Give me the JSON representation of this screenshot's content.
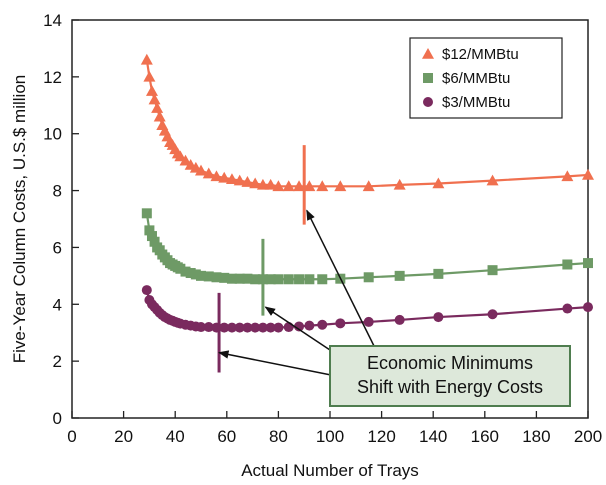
{
  "chart_data": {
    "type": "line",
    "xlabel": "Actual Number of Trays",
    "ylabel": "Five-Year Column Costs, U.S.$ million",
    "xlim": [
      0,
      200
    ],
    "ylim": [
      0,
      14
    ],
    "xticks": [
      0,
      20,
      40,
      60,
      80,
      100,
      120,
      140,
      160,
      180,
      200
    ],
    "yticks": [
      0,
      2,
      4,
      6,
      8,
      10,
      12,
      14
    ],
    "grid": false,
    "legend_position": "top-right",
    "series": [
      {
        "name": "$12/MMBtu",
        "color": "#f0704f",
        "marker": "triangle",
        "x": [
          29,
          30,
          31,
          32,
          33,
          34,
          35,
          36,
          37,
          38,
          39,
          40,
          41,
          42,
          44,
          46,
          48,
          50,
          53,
          56,
          59,
          62,
          65,
          68,
          71,
          74,
          77,
          80,
          84,
          88,
          92,
          97,
          104,
          115,
          127,
          142,
          163,
          192,
          200
        ],
        "values": [
          12.6,
          12.0,
          11.5,
          11.2,
          10.9,
          10.6,
          10.3,
          10.1,
          9.9,
          9.7,
          9.6,
          9.45,
          9.3,
          9.2,
          9.05,
          8.9,
          8.8,
          8.7,
          8.6,
          8.5,
          8.45,
          8.4,
          8.35,
          8.3,
          8.25,
          8.2,
          8.2,
          8.15,
          8.15,
          8.15,
          8.15,
          8.15,
          8.15,
          8.15,
          8.2,
          8.25,
          8.35,
          8.5,
          8.55
        ]
      },
      {
        "name": "$6/MMBtu",
        "color": "#6e9a66",
        "marker": "square",
        "x": [
          29,
          30,
          31,
          32,
          33,
          34,
          35,
          36,
          37,
          38,
          39,
          40,
          41,
          42,
          44,
          46,
          48,
          50,
          53,
          56,
          59,
          62,
          65,
          68,
          71,
          74,
          77,
          80,
          84,
          88,
          92,
          97,
          104,
          115,
          127,
          142,
          163,
          192,
          200
        ],
        "values": [
          7.2,
          6.6,
          6.4,
          6.2,
          6.0,
          5.9,
          5.75,
          5.65,
          5.55,
          5.45,
          5.4,
          5.35,
          5.3,
          5.25,
          5.15,
          5.1,
          5.05,
          5.0,
          4.98,
          4.95,
          4.93,
          4.9,
          4.9,
          4.9,
          4.88,
          4.88,
          4.88,
          4.88,
          4.88,
          4.88,
          4.88,
          4.88,
          4.9,
          4.95,
          5.0,
          5.07,
          5.2,
          5.4,
          5.45
        ]
      },
      {
        "name": "$3/MMBtu",
        "color": "#7a2a5e",
        "marker": "circle",
        "x": [
          29,
          30,
          31,
          32,
          33,
          34,
          35,
          36,
          37,
          38,
          39,
          40,
          41,
          42,
          44,
          46,
          48,
          50,
          53,
          56,
          59,
          62,
          65,
          68,
          71,
          74,
          77,
          80,
          84,
          88,
          92,
          97,
          104,
          115,
          127,
          142,
          163,
          192,
          200
        ],
        "values": [
          4.5,
          4.15,
          4.0,
          3.9,
          3.8,
          3.7,
          3.62,
          3.55,
          3.5,
          3.45,
          3.42,
          3.38,
          3.35,
          3.32,
          3.28,
          3.25,
          3.22,
          3.2,
          3.2,
          3.18,
          3.18,
          3.18,
          3.18,
          3.18,
          3.18,
          3.18,
          3.18,
          3.18,
          3.2,
          3.22,
          3.25,
          3.28,
          3.33,
          3.38,
          3.45,
          3.55,
          3.65,
          3.85,
          3.9
        ]
      }
    ],
    "minimum_markers": [
      {
        "x": 57,
        "y": 3.0,
        "color": "#7a2a5e",
        "y_low": 1.6,
        "y_high": 4.4
      },
      {
        "x": 74,
        "y": 4.9,
        "color": "#6e9a66",
        "y_low": 3.6,
        "y_high": 6.3
      },
      {
        "x": 90,
        "y": 8.2,
        "color": "#f0704f",
        "y_low": 6.8,
        "y_high": 9.6
      }
    ],
    "annotation": {
      "lines": [
        "Economic Minimums",
        "Shift with Energy Costs"
      ],
      "box_fill": "#dde8da",
      "box_stroke": "#4f7d4f",
      "arrow_targets": [
        {
          "x": 57,
          "y": 2.3
        },
        {
          "x": 75,
          "y": 3.9
        },
        {
          "x": 91,
          "y": 7.3
        }
      ]
    }
  }
}
